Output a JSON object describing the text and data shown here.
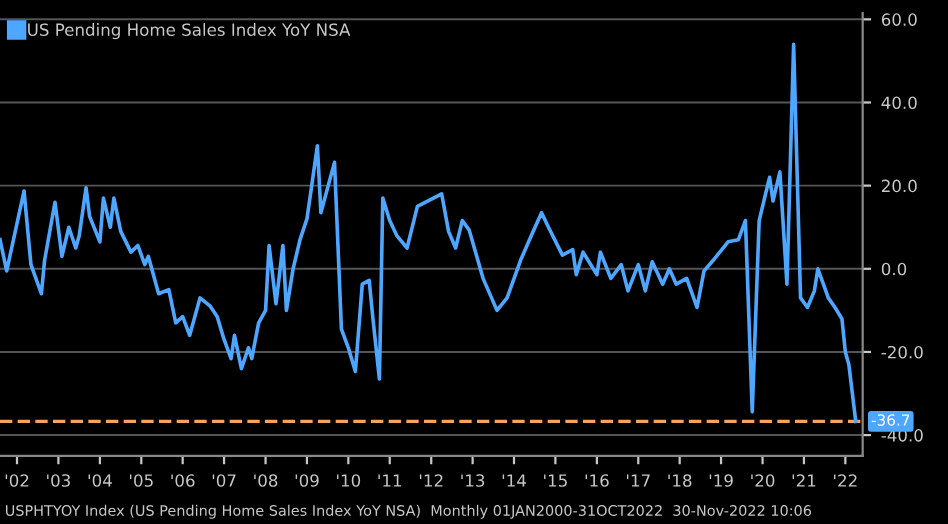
{
  "chart_data": {
    "type": "line",
    "x": [
      "2002-02",
      "2002-04",
      "2002-09",
      "2002-11",
      "2003-02",
      "2003-03",
      "2003-06",
      "2003-08",
      "2003-10",
      "2003-12",
      "2004-01",
      "2004-03",
      "2004-04",
      "2004-07",
      "2004-08",
      "2004-10",
      "2004-11",
      "2005-01",
      "2005-04",
      "2005-06",
      "2005-08",
      "2005-09",
      "2005-12",
      "2006-03",
      "2006-05",
      "2006-07",
      "2006-09",
      "2006-12",
      "2007-03",
      "2007-05",
      "2007-07",
      "2007-09",
      "2007-10",
      "2007-12",
      "2008-02",
      "2008-03",
      "2008-05",
      "2008-07",
      "2008-08",
      "2008-10",
      "2008-12",
      "2009-01",
      "2009-03",
      "2009-05",
      "2009-07",
      "2009-10",
      "2009-11",
      "2010-03",
      "2010-05",
      "2010-07",
      "2010-09",
      "2010-11",
      "2011-01",
      "2011-02",
      "2011-04",
      "2011-05",
      "2011-07",
      "2011-09",
      "2011-12",
      "2012-03",
      "2012-10",
      "2012-12",
      "2013-02",
      "2013-04",
      "2013-06",
      "2013-10",
      "2014-02",
      "2014-05",
      "2014-09",
      "2014-12",
      "2015-03",
      "2015-05",
      "2015-09",
      "2015-12",
      "2016-01",
      "2016-03",
      "2016-07",
      "2016-08",
      "2016-11",
      "2017-02",
      "2017-04",
      "2017-07",
      "2017-09",
      "2017-11",
      "2018-02",
      "2018-04",
      "2018-06",
      "2018-09",
      "2018-12",
      "2019-02",
      "2019-05",
      "2019-09",
      "2019-12",
      "2020-02",
      "2020-04",
      "2020-06",
      "2020-09",
      "2020-10",
      "2020-12",
      "2021-02",
      "2021-04",
      "2021-06",
      "2021-08",
      "2021-10",
      "2021-11",
      "2022-02",
      "2022-04",
      "2022-06",
      "2022-07",
      "2022-08",
      "2022-10"
    ],
    "series": [
      {
        "name": "US Pending Home Sales Index YoY NSA",
        "color": "#4da6ff",
        "values": [
          7,
          -0.5,
          18.7,
          1,
          -6,
          2,
          16,
          3,
          10,
          5,
          8,
          19.5,
          12.6,
          6.5,
          17,
          10,
          17,
          9,
          4,
          5.6,
          1,
          3,
          -6,
          -5,
          -13,
          -11.5,
          -16,
          -7,
          -9,
          -11.5,
          -17,
          -21.6,
          -16,
          -24,
          -19,
          -21.6,
          -13,
          -10,
          5.6,
          -8.4,
          5.6,
          -10,
          0,
          7,
          12,
          29.6,
          13.5,
          25.6,
          -14.5,
          -19,
          -24.7,
          -3.7,
          -2.8,
          -11.5,
          -26.5,
          17,
          11.6,
          8,
          5,
          15,
          18,
          9,
          5,
          11.6,
          9.3,
          -2.3,
          -10,
          -7,
          2.3,
          8,
          13.5,
          10,
          3.3,
          4.6,
          -1.4,
          4,
          -1.4,
          4,
          -2.3,
          1,
          -5.3,
          1,
          -5.3,
          1.7,
          -3.7,
          0,
          -3.7,
          -2.3,
          -9.3,
          -0.5,
          2.3,
          6.5,
          7,
          11.6,
          -34.4,
          11.6,
          22,
          16.3,
          23.3,
          -3.7,
          54,
          -7,
          -9.3,
          -5.3,
          0,
          -7,
          -9.3,
          -12,
          -20,
          -23,
          -36.7
        ]
      }
    ],
    "xlim": [
      "2002-02",
      "2022-12"
    ],
    "xticks": [
      {
        "value": "2002-07",
        "label": "'02"
      },
      {
        "value": "2003-07",
        "label": "'03"
      },
      {
        "value": "2004-07",
        "label": "'04"
      },
      {
        "value": "2005-07",
        "label": "'05"
      },
      {
        "value": "2006-07",
        "label": "'06"
      },
      {
        "value": "2007-07",
        "label": "'07"
      },
      {
        "value": "2008-07",
        "label": "'08"
      },
      {
        "value": "2009-07",
        "label": "'09"
      },
      {
        "value": "2010-07",
        "label": "'10"
      },
      {
        "value": "2011-07",
        "label": "'11"
      },
      {
        "value": "2012-07",
        "label": "'12"
      },
      {
        "value": "2013-07",
        "label": "'13"
      },
      {
        "value": "2014-07",
        "label": "'14"
      },
      {
        "value": "2015-07",
        "label": "'15"
      },
      {
        "value": "2016-07",
        "label": "'16"
      },
      {
        "value": "2017-07",
        "label": "'17"
      },
      {
        "value": "2018-07",
        "label": "'18"
      },
      {
        "value": "2019-07",
        "label": "'19"
      },
      {
        "value": "2020-07",
        "label": "'20"
      },
      {
        "value": "2021-07",
        "label": "'21"
      },
      {
        "value": "2022-07",
        "label": "'22"
      }
    ],
    "ylim": [
      -45,
      61.5
    ],
    "yticks": [
      {
        "value": 60,
        "label": "60.0"
      },
      {
        "value": 40,
        "label": "40.0"
      },
      {
        "value": 20,
        "label": "20.0"
      },
      {
        "value": 0,
        "label": "0.0"
      },
      {
        "value": -20,
        "label": "-20.0"
      },
      {
        "value": -40,
        "label": "-40.0"
      }
    ],
    "ref_lines": [
      {
        "axis": "y",
        "value": -36.7,
        "label": "-36.7",
        "color": "#f4a460",
        "line_style": "dashed"
      }
    ],
    "annotations": [
      "USPHTYOY Index (US Pending Home Sales Index YoY NSA)  Monthly 01JAN2000-31OCT2022  30-Nov-2022 10:06"
    ],
    "grid": "y",
    "legend": "top left",
    "line_style": "solid",
    "marker": "none"
  }
}
